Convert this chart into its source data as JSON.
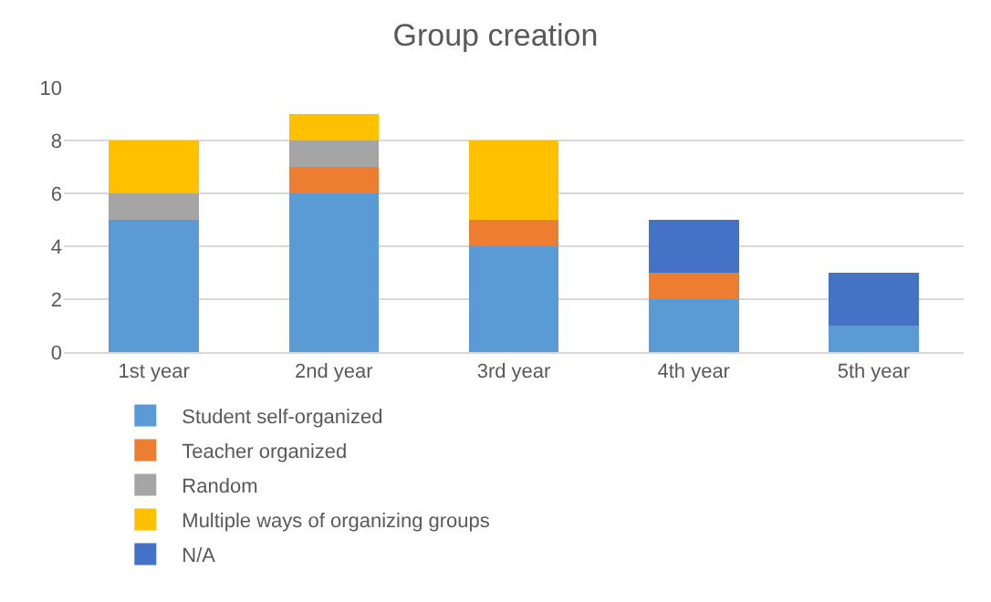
{
  "chart_data": {
    "type": "bar",
    "title": "Group creation",
    "stacked": true,
    "categories": [
      "1st year",
      "2nd year",
      "3rd year",
      "4th year",
      "5th year"
    ],
    "series": [
      {
        "name": "Student self-organized",
        "color": "#5b9bd5",
        "values": [
          5,
          6,
          4,
          2,
          1
        ]
      },
      {
        "name": "Teacher organized",
        "color": "#ed7d31",
        "values": [
          0,
          1,
          1,
          1,
          0
        ]
      },
      {
        "name": "Random",
        "color": "#a5a5a5",
        "values": [
          1,
          1,
          0,
          0,
          0
        ]
      },
      {
        "name": "Multiple ways of organizing groups",
        "color": "#ffc000",
        "values": [
          2,
          1,
          3,
          0,
          0
        ]
      },
      {
        "name": "N/A",
        "color": "#4472c4",
        "values": [
          0,
          0,
          0,
          2,
          2
        ]
      }
    ],
    "ylim": [
      0,
      10
    ],
    "yticks": [
      0,
      2,
      4,
      6,
      8,
      10
    ],
    "grid": "y",
    "legend": "bottom"
  }
}
